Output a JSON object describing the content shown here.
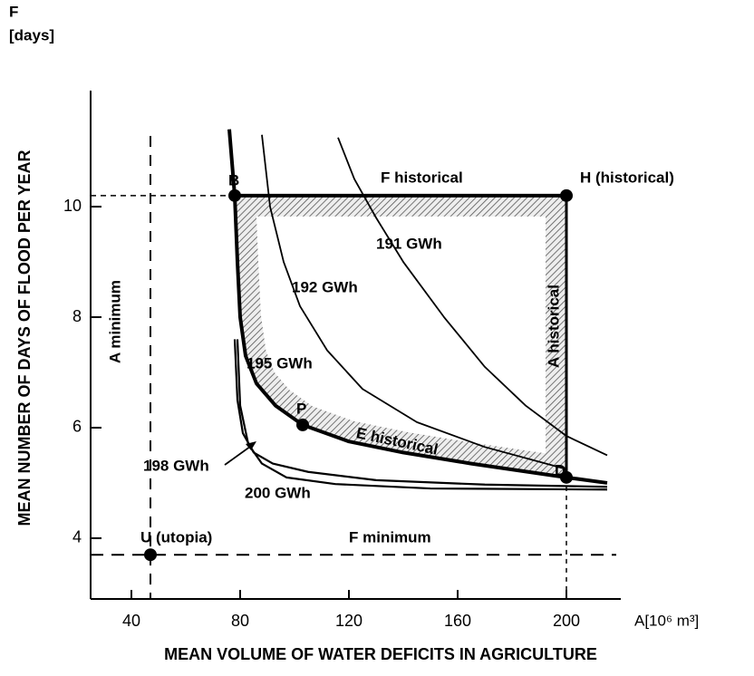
{
  "chart_data": {
    "type": "line",
    "y_symbol": "F",
    "y_unit": "[days]",
    "ylabel": "MEAN NUMBER OF DAYS OF FLOOD PER YEAR",
    "xlabel": "MEAN VOLUME OF WATER DEFICITS IN AGRICULTURE",
    "x_axis_unit": "A[10⁶ m³]",
    "xlim": [
      25,
      220
    ],
    "ylim": [
      2.9,
      12.1
    ],
    "xticks": [
      40,
      80,
      120,
      160,
      200
    ],
    "yticks": [
      4,
      6,
      8,
      10
    ],
    "color": "#000000",
    "series": [
      {
        "name": "195 GWh",
        "width": 4,
        "x": [
          76,
          78,
          79,
          80,
          82,
          86,
          93,
          103,
          120,
          140,
          165,
          200,
          215
        ],
        "values": [
          11.4,
          10.2,
          9,
          8,
          7.3,
          6.8,
          6.4,
          6.05,
          5.75,
          5.55,
          5.35,
          5.1,
          5.0
        ]
      },
      {
        "name": "192 GWh",
        "width": 1.8,
        "x": [
          88,
          91,
          96,
          102,
          112,
          125,
          145,
          170,
          200
        ],
        "values": [
          11.3,
          10,
          9,
          8.2,
          7.4,
          6.7,
          6.1,
          5.65,
          5.25
        ]
      },
      {
        "name": "191 GWh",
        "width": 1.8,
        "x": [
          116,
          122,
          130,
          140,
          155,
          170,
          185,
          200,
          215
        ],
        "values": [
          11.25,
          10.5,
          9.8,
          9,
          8,
          7.1,
          6.4,
          5.85,
          5.5
        ]
      },
      {
        "name": "198 GWh",
        "width": 2.2,
        "x": [
          78,
          79,
          81,
          85,
          92,
          105,
          130,
          170,
          215
        ],
        "values": [
          7.6,
          6.5,
          5.9,
          5.55,
          5.35,
          5.2,
          5.05,
          4.97,
          4.93
        ]
      },
      {
        "name": "200 GWh",
        "width": 2.2,
        "x": [
          79,
          80,
          83,
          88,
          97,
          115,
          150,
          215
        ],
        "values": [
          7.6,
          6.4,
          5.7,
          5.35,
          5.1,
          4.98,
          4.9,
          4.88
        ]
      }
    ],
    "points": [
      {
        "label": "B",
        "x": 78,
        "y": 10.2
      },
      {
        "label": "H (historical)",
        "x": 200,
        "y": 10.2
      },
      {
        "label": "P",
        "x": 103,
        "y": 6.05
      },
      {
        "label": "D",
        "x": 200,
        "y": 5.1
      },
      {
        "label": "U (utopia)",
        "x": 47,
        "y": 3.7
      }
    ],
    "vline": {
      "value": 47,
      "label": "A minimum"
    },
    "hline": {
      "value": 3.7,
      "label": "F minimum"
    },
    "annotations": [
      "F historical",
      "A historical",
      "E historical"
    ]
  }
}
